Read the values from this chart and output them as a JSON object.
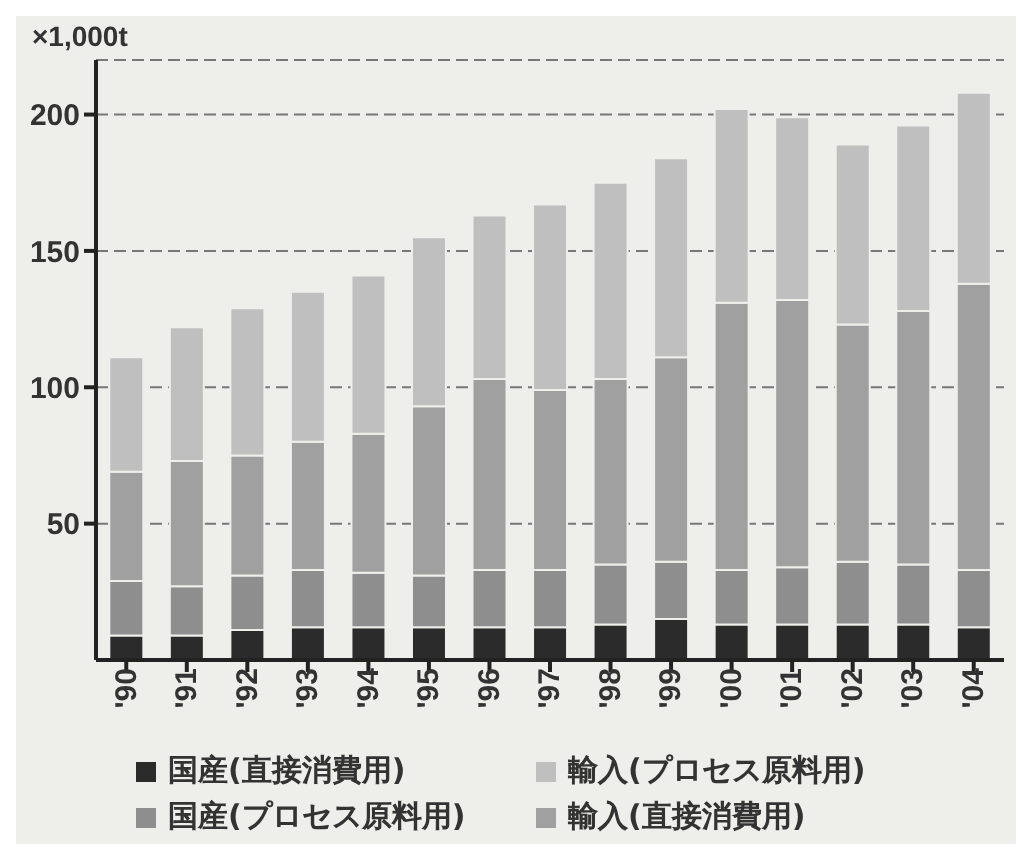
{
  "chart_data": {
    "type": "bar",
    "stacked": true,
    "ylabel": "×1,000t",
    "categories": [
      "'90",
      "'91",
      "'92",
      "'93",
      "'94",
      "'95",
      "'96",
      "'97",
      "'98",
      "'99",
      "'00",
      "'01",
      "'02",
      "'03",
      "'04"
    ],
    "series": [
      {
        "name": "国産(直接消費用)",
        "color": "#2b2b2b",
        "values": [
          9,
          9,
          11,
          12,
          12,
          12,
          12,
          12,
          13,
          15,
          13,
          13,
          13,
          13,
          12
        ]
      },
      {
        "name": "国産(プロセス原料用)",
        "color": "#8e8e8e",
        "values": [
          20,
          18,
          20,
          21,
          20,
          19,
          21,
          21,
          22,
          21,
          20,
          21,
          23,
          22,
          21
        ]
      },
      {
        "name": "輸入(直接消費用)",
        "color": "#a0a0a0",
        "values": [
          40,
          46,
          44,
          47,
          51,
          62,
          70,
          66,
          68,
          75,
          98,
          98,
          87,
          93,
          105
        ]
      },
      {
        "name": "輸入(プロセス原料用)",
        "color": "#bfbfbf",
        "values": [
          42,
          49,
          54,
          55,
          58,
          62,
          60,
          68,
          72,
          73,
          71,
          67,
          66,
          68,
          70
        ]
      }
    ],
    "ylim": [
      0,
      220
    ],
    "yticks": [
      50,
      100,
      150,
      200
    ],
    "grid": "y",
    "legend": "bottom"
  }
}
